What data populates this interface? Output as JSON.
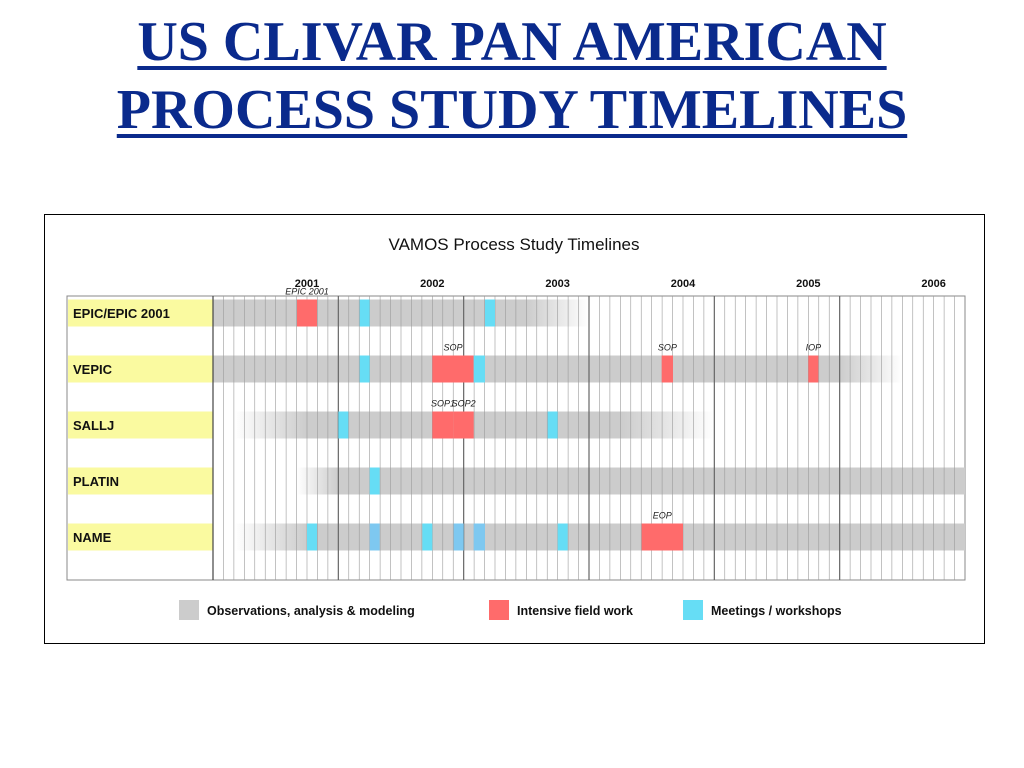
{
  "slide": {
    "title_line1": "US CLIVAR PAN AMERICAN",
    "title_line2": "PROCESS STUDY TIMELINES"
  },
  "chart_data": {
    "type": "gantt",
    "title": "VAMOS Process Study Timelines",
    "x_axis": {
      "years": [
        "2001",
        "2002",
        "2003",
        "2004",
        "2005",
        "2006"
      ],
      "start_year": 2000.75,
      "end_year": 2006.75,
      "minor_ticks": "monthly"
    },
    "legend": {
      "position": "bottom",
      "items": [
        {
          "key": "obs",
          "label": "Observations, analysis & modeling",
          "color": "#cccccc"
        },
        {
          "key": "field",
          "label": "Intensive field work",
          "color": "#ff6b6b"
        },
        {
          "key": "meet",
          "label": "Meetings / workshops",
          "color": "#66ddf5"
        }
      ]
    },
    "colors": {
      "label_bg": "#fafaa0",
      "obs": "#cccccc",
      "field": "#ff6b6b",
      "meet": "#66ddf5",
      "meet_light": "#7ec8f0"
    },
    "rows": [
      {
        "name": "EPIC/EPIC 2001",
        "obs": {
          "start": 2000.75,
          "end": 2003.75,
          "fade_in_end": null,
          "fade_out_start": 2003.25
        },
        "field": [
          {
            "start": 2001.42,
            "end": 2001.58,
            "label": "EPIC 2001"
          }
        ],
        "meetings": [
          {
            "start": 2001.92,
            "end": 2002.0
          },
          {
            "start": 2002.92,
            "end": 2003.0
          }
        ]
      },
      {
        "name": "VEPIC",
        "obs": {
          "start": 2000.75,
          "end": 2006.25,
          "fade_in_end": null,
          "fade_out_start": 2005.75
        },
        "field": [
          {
            "start": 2002.5,
            "end": 2002.83,
            "label": "SOP"
          },
          {
            "start": 2004.33,
            "end": 2004.42,
            "label": "SOP"
          },
          {
            "start": 2005.5,
            "end": 2005.58,
            "label": "IOP"
          }
        ],
        "meetings": [
          {
            "start": 2001.92,
            "end": 2002.0
          },
          {
            "start": 2002.83,
            "end": 2002.92
          }
        ]
      },
      {
        "name": "SALLJ",
        "obs": {
          "start": 2000.92,
          "end": 2004.75,
          "fade_in_end": 2001.5,
          "fade_out_start": 2004.0
        },
        "field": [
          {
            "start": 2002.5,
            "end": 2002.67,
            "label": "SOP1"
          },
          {
            "start": 2002.67,
            "end": 2002.83,
            "label": "SOP2"
          }
        ],
        "meetings": [
          {
            "start": 2001.75,
            "end": 2001.83
          },
          {
            "start": 2003.42,
            "end": 2003.5
          }
        ]
      },
      {
        "name": "PLATIN",
        "obs": {
          "start": 2001.42,
          "end": 2006.75,
          "fade_in_end": 2001.75,
          "fade_out_start": null
        },
        "field": [],
        "meetings": [
          {
            "start": 2002.0,
            "end": 2002.08
          }
        ]
      },
      {
        "name": "NAME",
        "obs": {
          "start": 2000.92,
          "end": 2006.75,
          "fade_in_end": 2001.5,
          "fade_out_start": null
        },
        "field": [
          {
            "start": 2004.17,
            "end": 2004.5,
            "label": "EOP"
          }
        ],
        "meetings": [
          {
            "start": 2001.5,
            "end": 2001.58
          },
          {
            "start": 2002.0,
            "end": 2002.08,
            "tone": "light"
          },
          {
            "start": 2002.42,
            "end": 2002.5
          },
          {
            "start": 2002.67,
            "end": 2002.75,
            "tone": "light"
          },
          {
            "start": 2002.83,
            "end": 2002.92,
            "tone": "light"
          },
          {
            "start": 2003.5,
            "end": 2003.58
          }
        ]
      }
    ]
  }
}
